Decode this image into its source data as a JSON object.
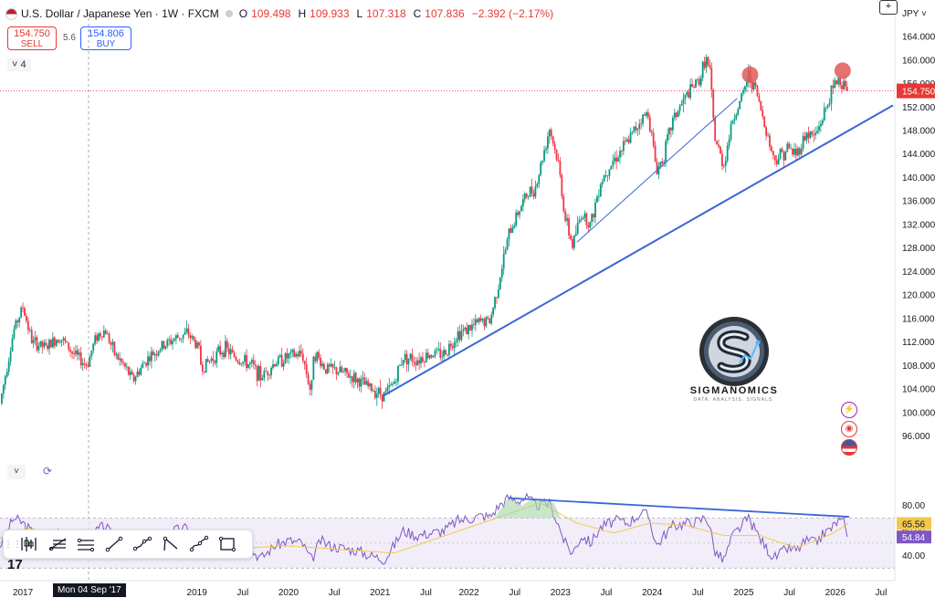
{
  "header": {
    "symbol": "U.S. Dollar / Japanese Yen · 1W · FXCM",
    "open_label": "O",
    "open": "109.498",
    "high_label": "H",
    "high": "109.933",
    "low_label": "L",
    "low": "107.318",
    "close_label": "C",
    "close": "107.836",
    "change": "−2.392 (−2.17%)"
  },
  "trade": {
    "sell_price": "154.750",
    "sell_label": "SELL",
    "spread": "5.6",
    "buy_price": "154.806",
    "buy_label": "BUY"
  },
  "indicator_count": "4",
  "currency": "JPY",
  "crosshair_date": "Mon 04 Sep '17",
  "watermark": {
    "name": "SIGMANOMICS",
    "tagline": "DATA. ANALYSIS. SIGNALS."
  },
  "colors": {
    "up": "#089981",
    "down": "#f23645",
    "trendline": "#3a66d6",
    "rsi": "#7e57c2",
    "rsi_ma": "#f2c94c",
    "price_tag": "#e53935"
  },
  "icons": [
    "bolt-icon",
    "target-icon",
    "us-flag-icon",
    "collapse-chevron-icon",
    "refresh-icon",
    "zoom-icon"
  ],
  "toolbar_icons": [
    "long-position-icon",
    "fib-retracement-icon",
    "parallel-channel-icon",
    "trend-line-icon",
    "path-icon",
    "curve-icon",
    "xabcd-pattern-icon",
    "rectangle-icon"
  ],
  "chart_data": [
    {
      "type": "candlestick",
      "name": "USDJPY weekly",
      "x_ticks": [
        "2017",
        "Jul",
        "2019",
        "Jul",
        "2020",
        "Jul",
        "2021",
        "Jul",
        "2022",
        "Jul",
        "2023",
        "Jul",
        "2024",
        "Jul",
        "2025",
        "Jul",
        "2026",
        "Jul"
      ],
      "y_ticks": [
        "96.000",
        "100.000",
        "104.000",
        "108.000",
        "112.000",
        "116.000",
        "120.000",
        "124.000",
        "128.000",
        "132.000",
        "136.000",
        "140.000",
        "144.000",
        "148.000",
        "152.000",
        "156.000",
        "160.000",
        "164.000"
      ],
      "ylim": [
        92.5,
        166.5
      ],
      "current_price": 154.75,
      "current_price_label": "154.750",
      "path": [
        [
          2016.8,
          101.5
        ],
        [
          2016.95,
          114
        ],
        [
          2017.05,
          118
        ],
        [
          2017.15,
          112
        ],
        [
          2017.3,
          111
        ],
        [
          2017.45,
          113
        ],
        [
          2017.6,
          110
        ],
        [
          2017.75,
          108
        ],
        [
          2017.85,
          113
        ],
        [
          2017.95,
          114
        ],
        [
          2018.05,
          110
        ],
        [
          2018.15,
          108
        ],
        [
          2018.25,
          105.5
        ],
        [
          2018.4,
          109
        ],
        [
          2018.55,
          111
        ],
        [
          2018.7,
          112.5
        ],
        [
          2018.85,
          113.5
        ],
        [
          2018.97,
          111
        ],
        [
          2019.0,
          107.5
        ],
        [
          2019.1,
          109
        ],
        [
          2019.25,
          111
        ],
        [
          2019.4,
          109
        ],
        [
          2019.55,
          108
        ],
        [
          2019.65,
          106
        ],
        [
          2019.8,
          108.5
        ],
        [
          2019.95,
          109.5
        ],
        [
          2020.1,
          110
        ],
        [
          2020.2,
          103
        ],
        [
          2020.22,
          110.5
        ],
        [
          2020.35,
          107.5
        ],
        [
          2020.5,
          107
        ],
        [
          2020.65,
          106
        ],
        [
          2020.8,
          104.5
        ],
        [
          2020.95,
          103.3
        ],
        [
          2021.0,
          103
        ],
        [
          2021.1,
          105
        ],
        [
          2021.2,
          109.5
        ],
        [
          2021.35,
          109
        ],
        [
          2021.5,
          110
        ],
        [
          2021.65,
          110
        ],
        [
          2021.8,
          113.5
        ],
        [
          2021.95,
          114.5
        ],
        [
          2022.05,
          115.5
        ],
        [
          2022.15,
          115.5
        ],
        [
          2022.25,
          122.5
        ],
        [
          2022.35,
          130
        ],
        [
          2022.45,
          134
        ],
        [
          2022.55,
          137
        ],
        [
          2022.65,
          138.5
        ],
        [
          2022.8,
          148.5
        ],
        [
          2022.9,
          142
        ],
        [
          2022.97,
          133
        ],
        [
          2023.05,
          128.5
        ],
        [
          2023.15,
          134
        ],
        [
          2023.25,
          132
        ],
        [
          2023.35,
          139
        ],
        [
          2023.45,
          142
        ],
        [
          2023.55,
          144
        ],
        [
          2023.65,
          146
        ],
        [
          2023.8,
          150
        ],
        [
          2023.88,
          151
        ],
        [
          2023.97,
          141
        ],
        [
          2024.05,
          144
        ],
        [
          2024.15,
          150
        ],
        [
          2024.3,
          154
        ],
        [
          2024.45,
          157
        ],
        [
          2024.5,
          160.5
        ],
        [
          2024.55,
          158
        ],
        [
          2024.6,
          147
        ],
        [
          2024.7,
          142
        ],
        [
          2024.8,
          150
        ],
        [
          2024.9,
          153.5
        ],
        [
          2024.97,
          157.5
        ],
        [
          2025.05,
          155
        ],
        [
          2025.15,
          149
        ],
        [
          2025.25,
          143
        ],
        [
          2025.33,
          144
        ],
        [
          2025.4,
          145
        ],
        [
          2025.5,
          144
        ],
        [
          2025.6,
          147.5
        ],
        [
          2025.7,
          147
        ],
        [
          2025.8,
          151
        ],
        [
          2025.88,
          154.5
        ],
        [
          2025.95,
          157
        ],
        [
          2026.0,
          155.5
        ],
        [
          2026.03,
          156.3
        ],
        [
          2026.06,
          154.75
        ]
      ]
    },
    {
      "type": "line",
      "name": "RSI",
      "y_ticks": [
        "40.00",
        "60.00",
        "80.00"
      ],
      "ylim": [
        28,
        90
      ],
      "band": [
        30,
        70
      ],
      "last_values": [
        {
          "label": "65.56"
        },
        {
          "label": "54.84"
        }
      ],
      "series": [
        {
          "name": "RSI",
          "x": [
            2016.8,
            2016.95,
            2017.05,
            2017.2,
            2017.35,
            2017.5,
            2017.6,
            2017.75,
            2017.85,
            2017.95,
            2018.05,
            2018.15,
            2018.25,
            2018.4,
            2018.55,
            2018.7,
            2018.85,
            2018.97,
            2019.0,
            2019.1,
            2019.25,
            2019.4,
            2019.55,
            2019.65,
            2019.8,
            2019.95,
            2020.1,
            2020.2,
            2020.3,
            2020.4,
            2020.55,
            2020.7,
            2020.85,
            2020.95,
            2021.0,
            2021.1,
            2021.2,
            2021.35,
            2021.5,
            2021.65,
            2021.8,
            2021.95,
            2022.05,
            2022.15,
            2022.25,
            2022.35,
            2022.45,
            2022.55,
            2022.65,
            2022.8,
            2022.9,
            2022.97,
            2023.05,
            2023.15,
            2023.25,
            2023.35,
            2023.45,
            2023.55,
            2023.65,
            2023.8,
            2023.88,
            2023.97,
            2024.05,
            2024.15,
            2024.3,
            2024.45,
            2024.5,
            2024.55,
            2024.6,
            2024.7,
            2024.8,
            2024.9,
            2024.97,
            2025.05,
            2025.15,
            2025.25,
            2025.33,
            2025.4,
            2025.5,
            2025.6,
            2025.7,
            2025.8,
            2025.88,
            2025.95,
            2026.0,
            2026.03,
            2026.06
          ],
          "values": [
            48,
            70,
            66,
            55,
            58,
            62,
            48,
            46,
            60,
            64,
            52,
            44,
            40,
            50,
            56,
            60,
            62,
            52,
            40,
            46,
            52,
            48,
            44,
            38,
            48,
            52,
            50,
            36,
            52,
            48,
            46,
            44,
            40,
            38,
            37,
            48,
            60,
            56,
            58,
            60,
            68,
            70,
            72,
            71,
            80,
            86,
            84,
            86,
            80,
            82,
            64,
            50,
            42,
            56,
            50,
            62,
            66,
            68,
            66,
            74,
            72,
            48,
            56,
            64,
            66,
            68,
            72,
            64,
            44,
            36,
            56,
            64,
            70,
            60,
            48,
            38,
            42,
            46,
            44,
            52,
            50,
            58,
            62,
            68,
            66,
            67,
            55
          ]
        },
        {
          "name": "RSI-based MA",
          "x": [
            2016.8,
            2017.1,
            2017.5,
            2017.9,
            2018.3,
            2018.7,
            2019.1,
            2019.5,
            2019.9,
            2020.3,
            2020.7,
            2021.1,
            2021.5,
            2021.9,
            2022.3,
            2022.7,
            2023.1,
            2023.5,
            2023.9,
            2024.3,
            2024.7,
            2025.1,
            2025.5,
            2025.9,
            2026.06
          ],
          "values": [
            54,
            62,
            56,
            54,
            48,
            55,
            50,
            46,
            48,
            46,
            44,
            42,
            52,
            62,
            72,
            82,
            66,
            58,
            66,
            64,
            56,
            56,
            46,
            58,
            65.5
          ]
        }
      ]
    }
  ]
}
